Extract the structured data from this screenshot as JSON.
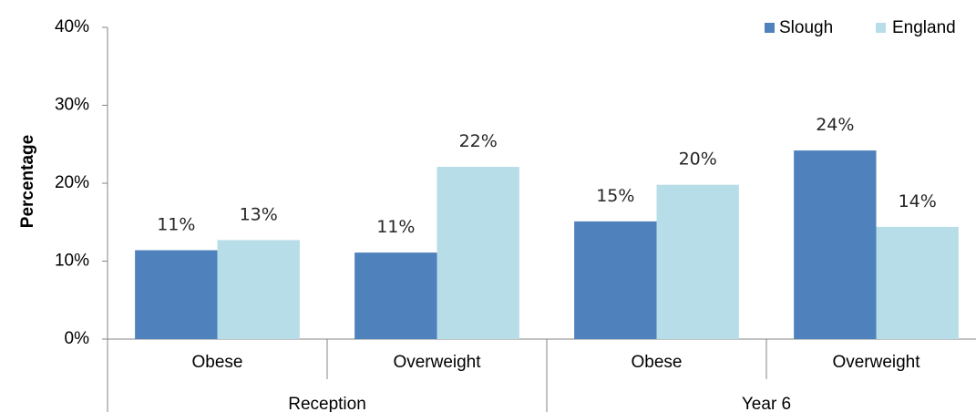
{
  "chart_data": {
    "type": "bar",
    "title": "",
    "ylabel": "Percentage",
    "xlabel": "",
    "ylim": [
      0,
      40
    ],
    "yticks": [
      "0%",
      "10%",
      "20%",
      "30%",
      "40%"
    ],
    "groups": [
      {
        "label": "Reception",
        "categories": [
          "Obese",
          "Overweight"
        ]
      },
      {
        "label": "Year 6",
        "categories": [
          "Obese",
          "Overweight"
        ]
      }
    ],
    "categories": [
      "Obese",
      "Overweight",
      "Obese",
      "Overweight"
    ],
    "series": [
      {
        "name": "Slough",
        "color": "#4f81bd",
        "values": [
          11.4,
          11.1,
          15.1,
          24.2
        ],
        "labels": [
          "11%",
          "11%",
          "15%",
          "24%"
        ]
      },
      {
        "name": "England",
        "color": "#b7dde8",
        "values": [
          12.7,
          22.1,
          19.8,
          14.4
        ],
        "labels": [
          "13%",
          "22%",
          "20%",
          "14%"
        ]
      }
    ],
    "legend_position": "top-right",
    "grid": false
  }
}
